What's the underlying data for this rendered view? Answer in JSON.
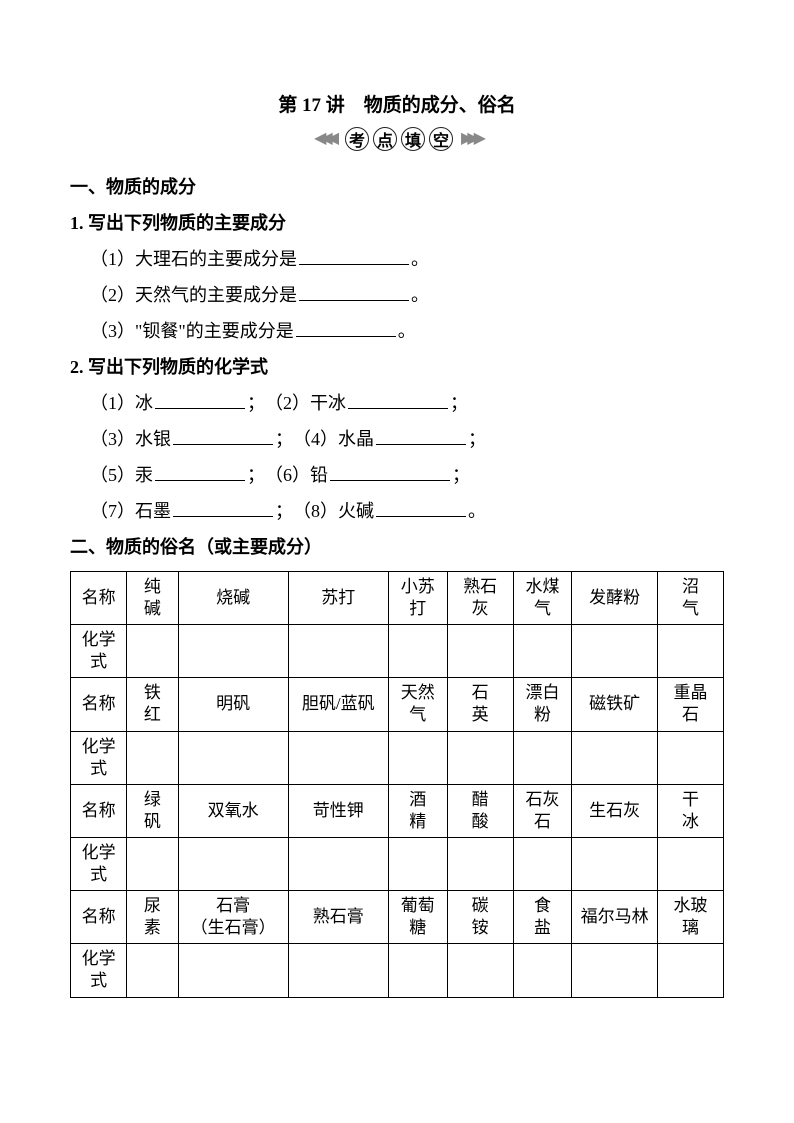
{
  "title": "第 17 讲　物质的成分、俗名",
  "banner": {
    "c1": "考",
    "c2": "点",
    "c3": "填",
    "c4": "空"
  },
  "sec1": {
    "heading": "一、物质的成分",
    "q1": {
      "stem": "1. 写出下列物质的主要成分",
      "a": "（1）大理石的主要成分是",
      "b": "（2）天然气的主要成分是",
      "c": "（3）\"钡餐\"的主要成分是",
      "punct": "。"
    },
    "q2": {
      "stem": "2. 写出下列物质的化学式",
      "i1a": "（1）冰",
      "i1b": "；　（2）干冰",
      "i1c": "；",
      "i2a": "（3）水银",
      "i2b": "；　（4）水晶",
      "i2c": "；",
      "i3a": "（5）汞",
      "i3b": "；　（6）铅",
      "i3c": "；",
      "i4a": "（7）石墨",
      "i4b": "；　（8）火碱",
      "i4c": "。"
    }
  },
  "sec2": {
    "heading": "二、物质的俗名（或主要成分）",
    "row_label_name": "名称",
    "row_label_formula": "化学式",
    "rows": [
      [
        "纯碱",
        "烧碱",
        "苏打",
        "小苏打",
        "熟石灰",
        "水煤气",
        "发酵粉",
        "沼气"
      ],
      [
        "铁红",
        "明矾",
        "胆矾/蓝矾",
        "天然气",
        "石英",
        "漂白粉",
        "磁铁矿",
        "重晶石"
      ],
      [
        "绿矾",
        "双氧水",
        "苛性钾",
        "酒精",
        "醋酸",
        "石灰石",
        "生石灰",
        "干冰"
      ],
      [
        "尿素",
        "石膏\n（生石膏）",
        "熟石膏",
        "葡萄糖",
        "碳铵",
        "食盐",
        "福尔马林",
        "水玻璃"
      ]
    ]
  },
  "style": {
    "blank_widths": {
      "w1": 110,
      "w2": 110,
      "w3": 100,
      "short": 90,
      "med": 100,
      "long": 110
    }
  }
}
